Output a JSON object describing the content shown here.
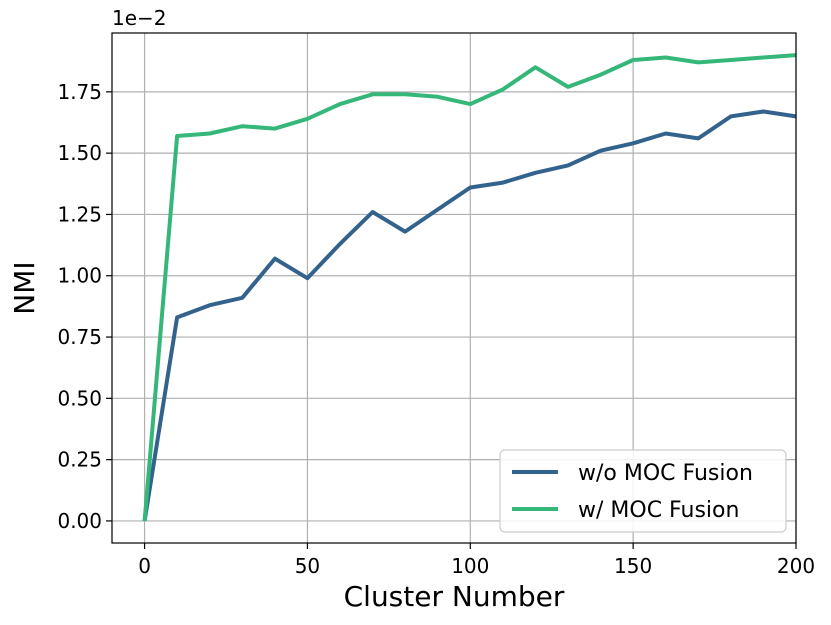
{
  "chart_data": {
    "type": "line",
    "xlabel": "Cluster Number",
    "ylabel": "NMI",
    "offset_text": "1e−2",
    "xlim": [
      -10,
      200
    ],
    "ylim": [
      -0.09,
      1.99
    ],
    "x_ticks": [
      0,
      50,
      100,
      150,
      200
    ],
    "y_ticks": [
      0.0,
      0.25,
      0.5,
      0.75,
      1.0,
      1.25,
      1.5,
      1.75
    ],
    "x_tick_labels": [
      "0",
      "50",
      "100",
      "150",
      "200"
    ],
    "y_tick_labels": [
      "0.00",
      "0.25",
      "0.50",
      "0.75",
      "1.00",
      "1.25",
      "1.50",
      "1.75"
    ],
    "grid": true,
    "legend_position": "lower-right",
    "x": [
      0,
      10,
      20,
      30,
      40,
      50,
      60,
      70,
      80,
      90,
      100,
      110,
      120,
      130,
      140,
      150,
      160,
      170,
      180,
      190,
      200
    ],
    "series": [
      {
        "name": "w/o MOC Fusion",
        "color": "#33638d",
        "values": [
          0.0,
          0.83,
          0.88,
          0.91,
          1.07,
          0.99,
          1.13,
          1.26,
          1.18,
          1.27,
          1.36,
          1.38,
          1.42,
          1.45,
          1.51,
          1.54,
          1.58,
          1.56,
          1.65,
          1.67,
          1.65
        ]
      },
      {
        "name": "w/ MOC Fusion",
        "color": "#35b779",
        "values": [
          0.0,
          1.57,
          1.58,
          1.61,
          1.6,
          1.64,
          1.7,
          1.74,
          1.74,
          1.73,
          1.7,
          1.76,
          1.85,
          1.77,
          1.82,
          1.88,
          1.89,
          1.87,
          1.88,
          1.89,
          1.9
        ]
      }
    ]
  }
}
